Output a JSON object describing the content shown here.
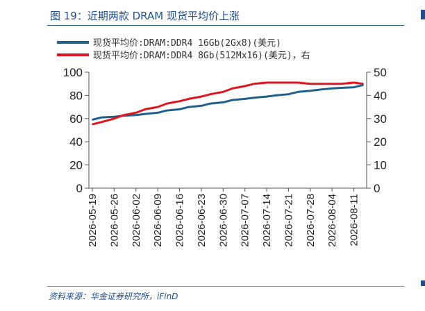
{
  "figure": {
    "title": "图 19：近期两款 DRAM 现货平均价上涨",
    "source": "资料来源：华金证券研究所，iFinD"
  },
  "colors": {
    "title_blue": "#1f4e8c",
    "series_blue": "#1f5f8b",
    "series_red": "#e0161e"
  },
  "chart_data": {
    "type": "line",
    "title": "",
    "xlabel": "",
    "ylabel": "",
    "grid": false,
    "legend_position": "top",
    "x_ticks": [
      "2026-05-19",
      "2026-05-26",
      "2026-06-02",
      "2026-06-09",
      "2026-06-16",
      "2026-06-23",
      "2026-06-30",
      "2026-07-07",
      "2026-07-14",
      "2026-07-21",
      "2026-07-28",
      "2026-08-04",
      "2026-08-11"
    ],
    "ylim_left": [
      0,
      100
    ],
    "ylim_right": [
      0,
      50
    ],
    "yticks_left": [
      0,
      20,
      40,
      60,
      80,
      100
    ],
    "yticks_right": [
      0,
      10,
      20,
      30,
      40,
      50
    ],
    "x": [
      "2026-05-19",
      "2026-05-22",
      "2026-05-26",
      "2026-05-29",
      "2026-06-02",
      "2026-06-05",
      "2026-06-09",
      "2026-06-12",
      "2026-06-16",
      "2026-06-19",
      "2026-06-23",
      "2026-06-26",
      "2026-06-30",
      "2026-07-03",
      "2026-07-07",
      "2026-07-10",
      "2026-07-14",
      "2026-07-17",
      "2026-07-21",
      "2026-07-24",
      "2026-07-28",
      "2026-07-31",
      "2026-08-04",
      "2026-08-07",
      "2026-08-11",
      "2026-08-14"
    ],
    "series": [
      {
        "name": "现货平均价:DRAM:DDR4 16Gb(2Gx8)(美元)",
        "axis": "left",
        "values": [
          59,
          61,
          61.5,
          62.5,
          63,
          64,
          65,
          67,
          68,
          70,
          71,
          73,
          74,
          76,
          77,
          78,
          79,
          80,
          81,
          83,
          84,
          85,
          86,
          86.5,
          87,
          89
        ]
      },
      {
        "name": "现货平均价:DRAM:DDR4 8Gb(512Mx16)(美元)，右",
        "axis": "right",
        "values": [
          27.5,
          28.5,
          30,
          31.5,
          32.5,
          34,
          35,
          36.5,
          37.5,
          38.5,
          39.5,
          40.5,
          41.5,
          43,
          44,
          45,
          45.5,
          45.5,
          45.5,
          45.5,
          45,
          45,
          45,
          45,
          45.5,
          45
        ]
      }
    ]
  }
}
